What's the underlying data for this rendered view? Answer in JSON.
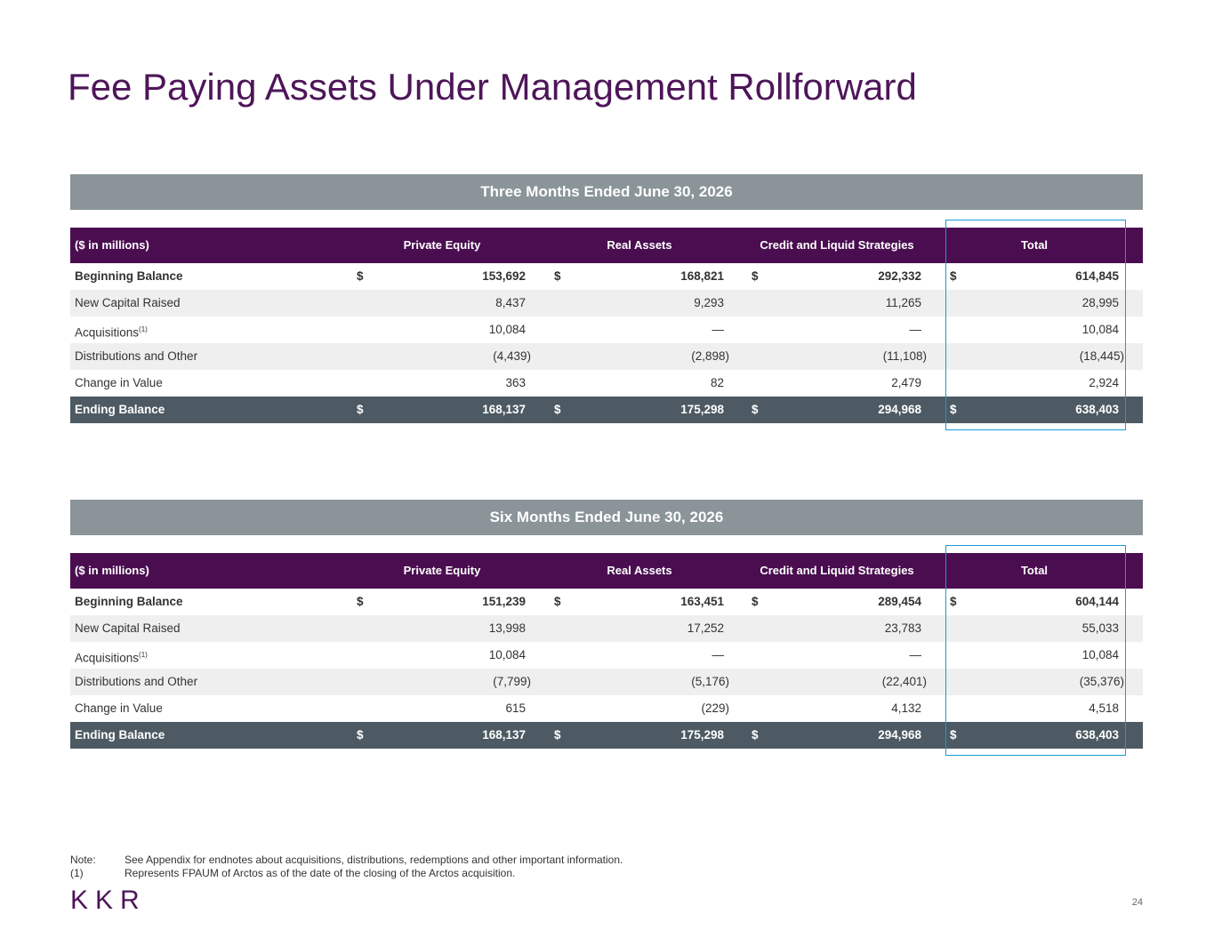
{
  "title": "Fee Paying Assets Under Management Rollforward",
  "tables": [
    {
      "caption": "Three Months Ended June 30, 2026",
      "header": [
        "($ in millions)",
        "Private Equity",
        "Real Assets",
        "Credit and Liquid Strategies",
        "Total"
      ],
      "rows": [
        {
          "label": "Beginning Balance",
          "symbol": "$",
          "cells": [
            "153,692",
            "168,821",
            "292,332",
            "614,845"
          ]
        },
        {
          "label": "New Capital Raised",
          "cells": [
            "8,437",
            "9,293",
            "11,265",
            "28,995"
          ]
        },
        {
          "label": "Acquisitions",
          "footnote": "(1)",
          "cells": [
            "10,084",
            "—",
            "—",
            "10,084"
          ]
        },
        {
          "label": "Distributions and Other",
          "cells": [
            "(4,439)",
            "(2,898)",
            "(11,108)",
            "(18,445)"
          ]
        },
        {
          "label": "Change in Value",
          "cells": [
            "363",
            "82",
            "2,479",
            "2,924"
          ]
        },
        {
          "label": "Ending Balance",
          "symbol": "$",
          "cells": [
            "168,137",
            "175,298",
            "294,968",
            "638,403"
          ]
        }
      ]
    },
    {
      "caption": "Six Months Ended June 30, 2026",
      "header": [
        "($ in millions)",
        "Private Equity",
        "Real Assets",
        "Credit and Liquid Strategies",
        "Total"
      ],
      "rows": [
        {
          "label": "Beginning Balance",
          "symbol": "$",
          "cells": [
            "151,239",
            "163,451",
            "289,454",
            "604,144"
          ]
        },
        {
          "label": "New Capital Raised",
          "cells": [
            "13,998",
            "17,252",
            "23,783",
            "55,033"
          ]
        },
        {
          "label": "Acquisitions",
          "footnote": "(1)",
          "cells": [
            "10,084",
            "—",
            "—",
            "10,084"
          ]
        },
        {
          "label": "Distributions and Other",
          "cells": [
            "(7,799)",
            "(5,176)",
            "(22,401)",
            "(35,376)"
          ]
        },
        {
          "label": "Change in Value",
          "cells": [
            "615",
            "(229)",
            "4,132",
            "4,518"
          ]
        },
        {
          "label": "Ending Balance",
          "symbol": "$",
          "cells": [
            "168,137",
            "175,298",
            "294,968",
            "638,403"
          ]
        }
      ]
    }
  ],
  "notes": [
    {
      "marker": "Note:",
      "text": "See Appendix for endnotes about acquisitions, distributions, redemptions and other important information."
    },
    {
      "marker": "(1)",
      "text": "Represents FPAUM of Arctos as of the date of the closing of the Arctos acquisition."
    }
  ],
  "logo": "KKR",
  "page_number": "24"
}
